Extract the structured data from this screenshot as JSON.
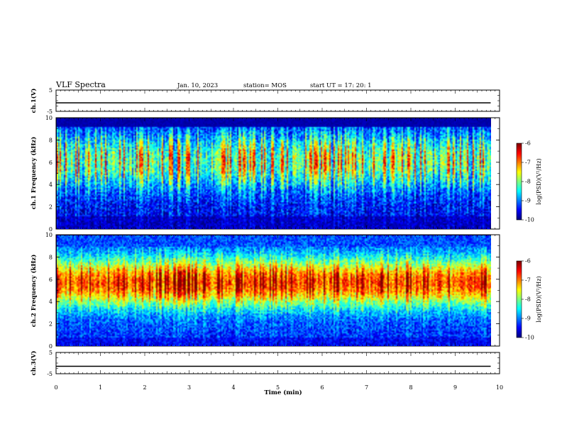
{
  "header": {
    "title": "VLF Spectra",
    "date": "Jan. 10, 2023",
    "station": "station= MOS",
    "start_ut": "start UT =   17: 20: 1"
  },
  "chart_data": [
    {
      "type": "line",
      "panel": "ch.1 waveform",
      "ylabel": "ch.1(V)",
      "ylim": [
        -5,
        5
      ],
      "yticks": [
        "5",
        "-5"
      ],
      "xlim": [
        0,
        10
      ],
      "series": [
        {
          "x": [
            0,
            9.8
          ],
          "values": [
            -1,
            -1
          ]
        }
      ]
    },
    {
      "type": "heatmap",
      "panel": "ch.1 spectrogram",
      "ylabel": "ch.1 Frequency (kHz)",
      "ylim": [
        0,
        10
      ],
      "yticks": [
        "0",
        "2",
        "4",
        "6",
        "8",
        "10"
      ],
      "xlim": [
        0,
        10
      ],
      "data_x_range": [
        0,
        9.8
      ],
      "colorbar": {
        "label": "log(PSD)(V²/Hz)",
        "ticks": [
          "-6",
          "-7",
          "-8",
          "-9",
          "-10"
        ],
        "range": [
          -10,
          -6
        ]
      }
    },
    {
      "type": "heatmap",
      "panel": "ch.2 spectrogram",
      "ylabel": "ch.2 Frequency (kHz)",
      "ylim": [
        0,
        10
      ],
      "yticks": [
        "0",
        "2",
        "4",
        "6",
        "8",
        "10"
      ],
      "xlim": [
        0,
        10
      ],
      "data_x_range": [
        0,
        9.8
      ],
      "colorbar": {
        "label": "log(PSD)(V²/Hz)",
        "ticks": [
          "-6",
          "-7",
          "-8",
          "-9",
          "-10"
        ],
        "range": [
          -10,
          -6
        ]
      }
    },
    {
      "type": "line",
      "panel": "ch.3 waveform",
      "ylabel": "ch.3(V)",
      "ylim": [
        -5,
        5
      ],
      "yticks": [
        "5",
        "-5"
      ],
      "xlim": [
        0,
        10
      ],
      "series": [
        {
          "x": [
            0,
            9.8
          ],
          "values": [
            -1.5,
            -1.5
          ]
        }
      ]
    }
  ],
  "xaxis": {
    "label": "Time (min)",
    "ticks": [
      "0",
      "1",
      "2",
      "3",
      "4",
      "5",
      "6",
      "7",
      "8",
      "9",
      "10"
    ]
  }
}
